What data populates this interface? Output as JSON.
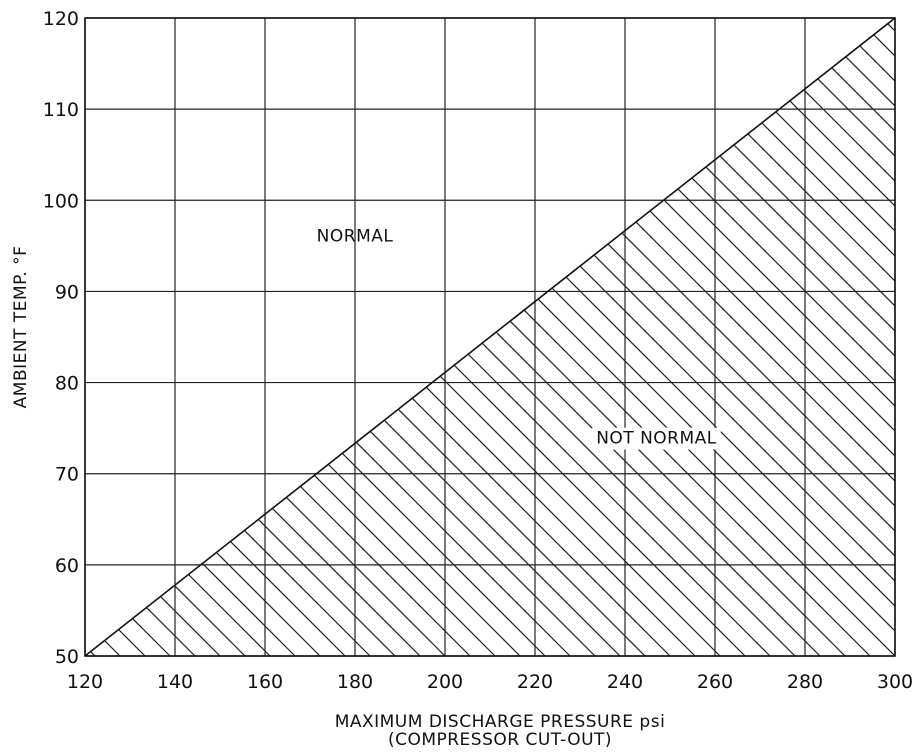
{
  "chart_data": {
    "type": "area",
    "xlabel": "MAXIMUM DISCHARGE PRESSURE psi",
    "xlabel_sub": "(COMPRESSOR CUT-OUT)",
    "ylabel": "AMBIENT TEMP. °F",
    "xlim": [
      120,
      300
    ],
    "ylim": [
      50,
      120
    ],
    "x_ticks": [
      "120",
      "140",
      "160",
      "180",
      "200",
      "220",
      "240",
      "260",
      "280",
      "300"
    ],
    "y_ticks": [
      "50",
      "60",
      "70",
      "80",
      "90",
      "100",
      "110",
      "120"
    ],
    "grid": true,
    "boundary": {
      "x": [
        120,
        300
      ],
      "y": [
        50,
        120
      ]
    },
    "regions": [
      {
        "label": "NORMAL",
        "side": "above",
        "x": 180,
        "y": 95.5
      },
      {
        "label": "NOT NORMAL",
        "side": "below",
        "hatched": true,
        "x": 247,
        "y": 73.3
      }
    ]
  }
}
